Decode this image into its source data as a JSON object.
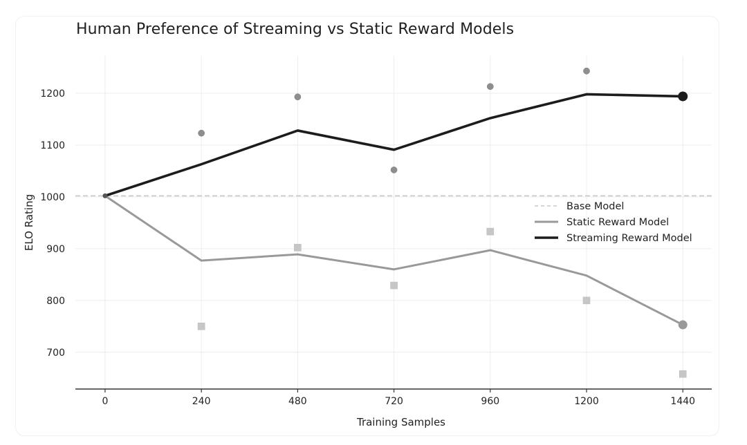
{
  "chart_data": {
    "type": "line",
    "title": "Human Preference of Streaming vs Static Reward Models",
    "xlabel": "Training Samples",
    "ylabel": "ELO Rating",
    "x": [
      0,
      240,
      480,
      720,
      960,
      1200,
      1440
    ],
    "x_ticks": [
      0,
      240,
      480,
      720,
      960,
      1200,
      1440
    ],
    "y_ticks": [
      700,
      800,
      900,
      1000,
      1100,
      1200
    ],
    "xlim": [
      -74,
      1512
    ],
    "ylim": [
      629,
      1272
    ],
    "grid": true,
    "legend_position": "center-right",
    "base_line": {
      "name": "Base Model",
      "value": 1002,
      "color": "#c8c8c8",
      "style": "dashed"
    },
    "series": [
      {
        "name": "Static Reward Model",
        "color": "#999999",
        "style": "solid",
        "values": [
          1002,
          877,
          889,
          860,
          897,
          848,
          753
        ],
        "scatter_marker": "square",
        "scatter_color": "#c6c6c6",
        "scatter_values": [
          null,
          750,
          902,
          829,
          933,
          800,
          658
        ]
      },
      {
        "name": "Streaming Reward Model",
        "color": "#1c1c1c",
        "style": "solid",
        "values": [
          1002,
          1063,
          1128,
          1091,
          1152,
          1198,
          1194
        ],
        "scatter_marker": "circle",
        "scatter_color": "#8e8e8e",
        "scatter_values": [
          null,
          1123,
          1193,
          1052,
          1213,
          1243,
          null
        ]
      }
    ],
    "legend": [
      "Base Model",
      "Static Reward Model",
      "Streaming Reward Model"
    ]
  }
}
